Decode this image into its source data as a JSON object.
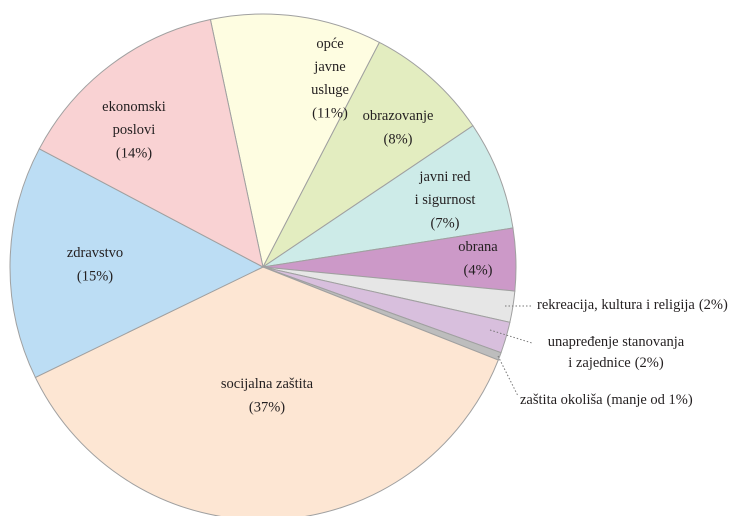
{
  "chart_data": {
    "type": "pie",
    "categories": [
      [
        "opće",
        "javne",
        "usluge"
      ],
      [
        "obrazovanje"
      ],
      [
        "javni red",
        "i sigurnost"
      ],
      [
        "obrana"
      ],
      [
        "rekreacija, kultura i religija"
      ],
      [
        "unapređenje stanovanja",
        "i zajednice"
      ],
      [
        "zaštita okoliša"
      ],
      [
        "socijalna zaštita"
      ],
      [
        "zdravstvo"
      ],
      [
        "ekonomski",
        "poslovi"
      ]
    ],
    "values": [
      11,
      8,
      7,
      4,
      2,
      2,
      0.5,
      37,
      15,
      14
    ],
    "value_labels": [
      "(11%)",
      "(8%)",
      "(7%)",
      "(4%)",
      "(2%)",
      "(2%)",
      "(manje od 1%)",
      "(37%)",
      "(15%)",
      "(14%)"
    ],
    "colors": [
      "#fefde1",
      "#e3edc0",
      "#cdebe8",
      "#cc99c8",
      "#e6e6e6",
      "#d8bfdd",
      "#bdbdbd",
      "#fde6d3",
      "#bcddf4",
      "#f9d2d3"
    ]
  }
}
